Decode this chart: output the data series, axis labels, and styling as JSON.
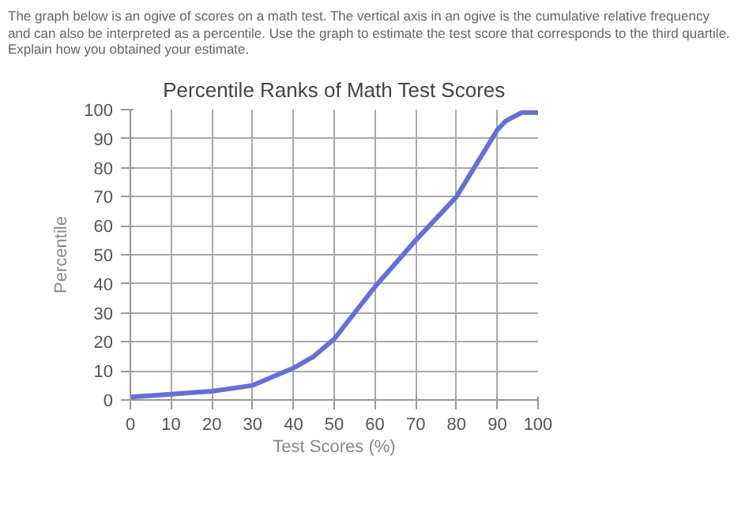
{
  "chart_data": {
    "type": "line",
    "title": "Percentile Ranks of Math Test Scores",
    "xlabel": "Test Scores (%)",
    "ylabel": "Percentile",
    "annotations": [
      "The graph below is an ogive of scores on a math test. The vertical axis in an ogive is the cumulative relative frequency and can also be interpreted as a percentile. Use the graph to estimate the test score that corresponds to the third quartile. Explain how you obtained your estimate."
    ],
    "x": [
      0,
      10,
      20,
      30,
      40,
      45,
      50,
      60,
      70,
      80,
      90,
      92,
      96,
      100
    ],
    "series": [
      {
        "color": "#6470d8",
        "values": [
          1,
          2,
          3,
          5,
          11,
          15,
          21,
          39,
          55,
          70,
          93,
          96,
          99,
          99
        ]
      }
    ],
    "xlim": [
      0,
      100
    ],
    "ylim": [
      0,
      100
    ],
    "xticks": [
      0,
      10,
      20,
      30,
      40,
      50,
      60,
      70,
      80,
      90,
      100
    ],
    "yticks": [
      0,
      10,
      20,
      30,
      40,
      50,
      60,
      70,
      80,
      90,
      100
    ],
    "grid": true,
    "marker": "none",
    "line_style": "solid"
  }
}
